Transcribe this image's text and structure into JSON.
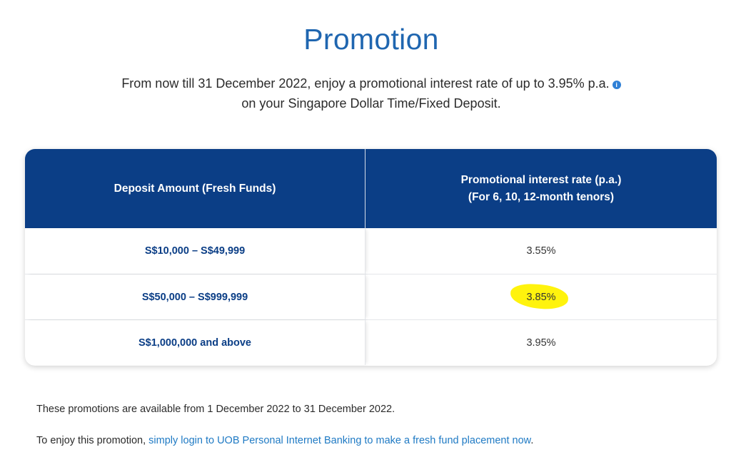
{
  "page": {
    "title": "Promotion",
    "intro_line1": "From now till 31 December 2022, enjoy a promotional interest rate of up to 3.95% p.a.",
    "intro_line2": "on your Singapore Dollar Time/Fixed Deposit.",
    "info_icon": "info-icon"
  },
  "table": {
    "headers": {
      "col1": "Deposit Amount (Fresh Funds)",
      "col2_line1": "Promotional interest rate (p.a.)",
      "col2_line2": "(For 6, 10, 12-month tenors)"
    },
    "rows": [
      {
        "amount": "S$10,000 – S$49,999",
        "rate": "3.55%"
      },
      {
        "amount": "S$50,000 – S$999,999",
        "rate": "3.85%"
      },
      {
        "amount": "S$1,000,000 and above",
        "rate": "3.95%"
      }
    ],
    "colors": {
      "header_bg": "#0b3e86",
      "amount_text": "#0b3e86",
      "highlight": "#fff200"
    }
  },
  "notes": {
    "availability": "These promotions are available from 1 December 2022 to 31 December 2022.",
    "enjoy_prefix": "To enjoy this promotion, ",
    "enjoy_link": "simply login to UOB Personal Internet Banking to make a fresh fund placement now",
    "enjoy_suffix": "."
  },
  "colors": {
    "title": "#1f66b0",
    "link": "#1f7ac4"
  }
}
